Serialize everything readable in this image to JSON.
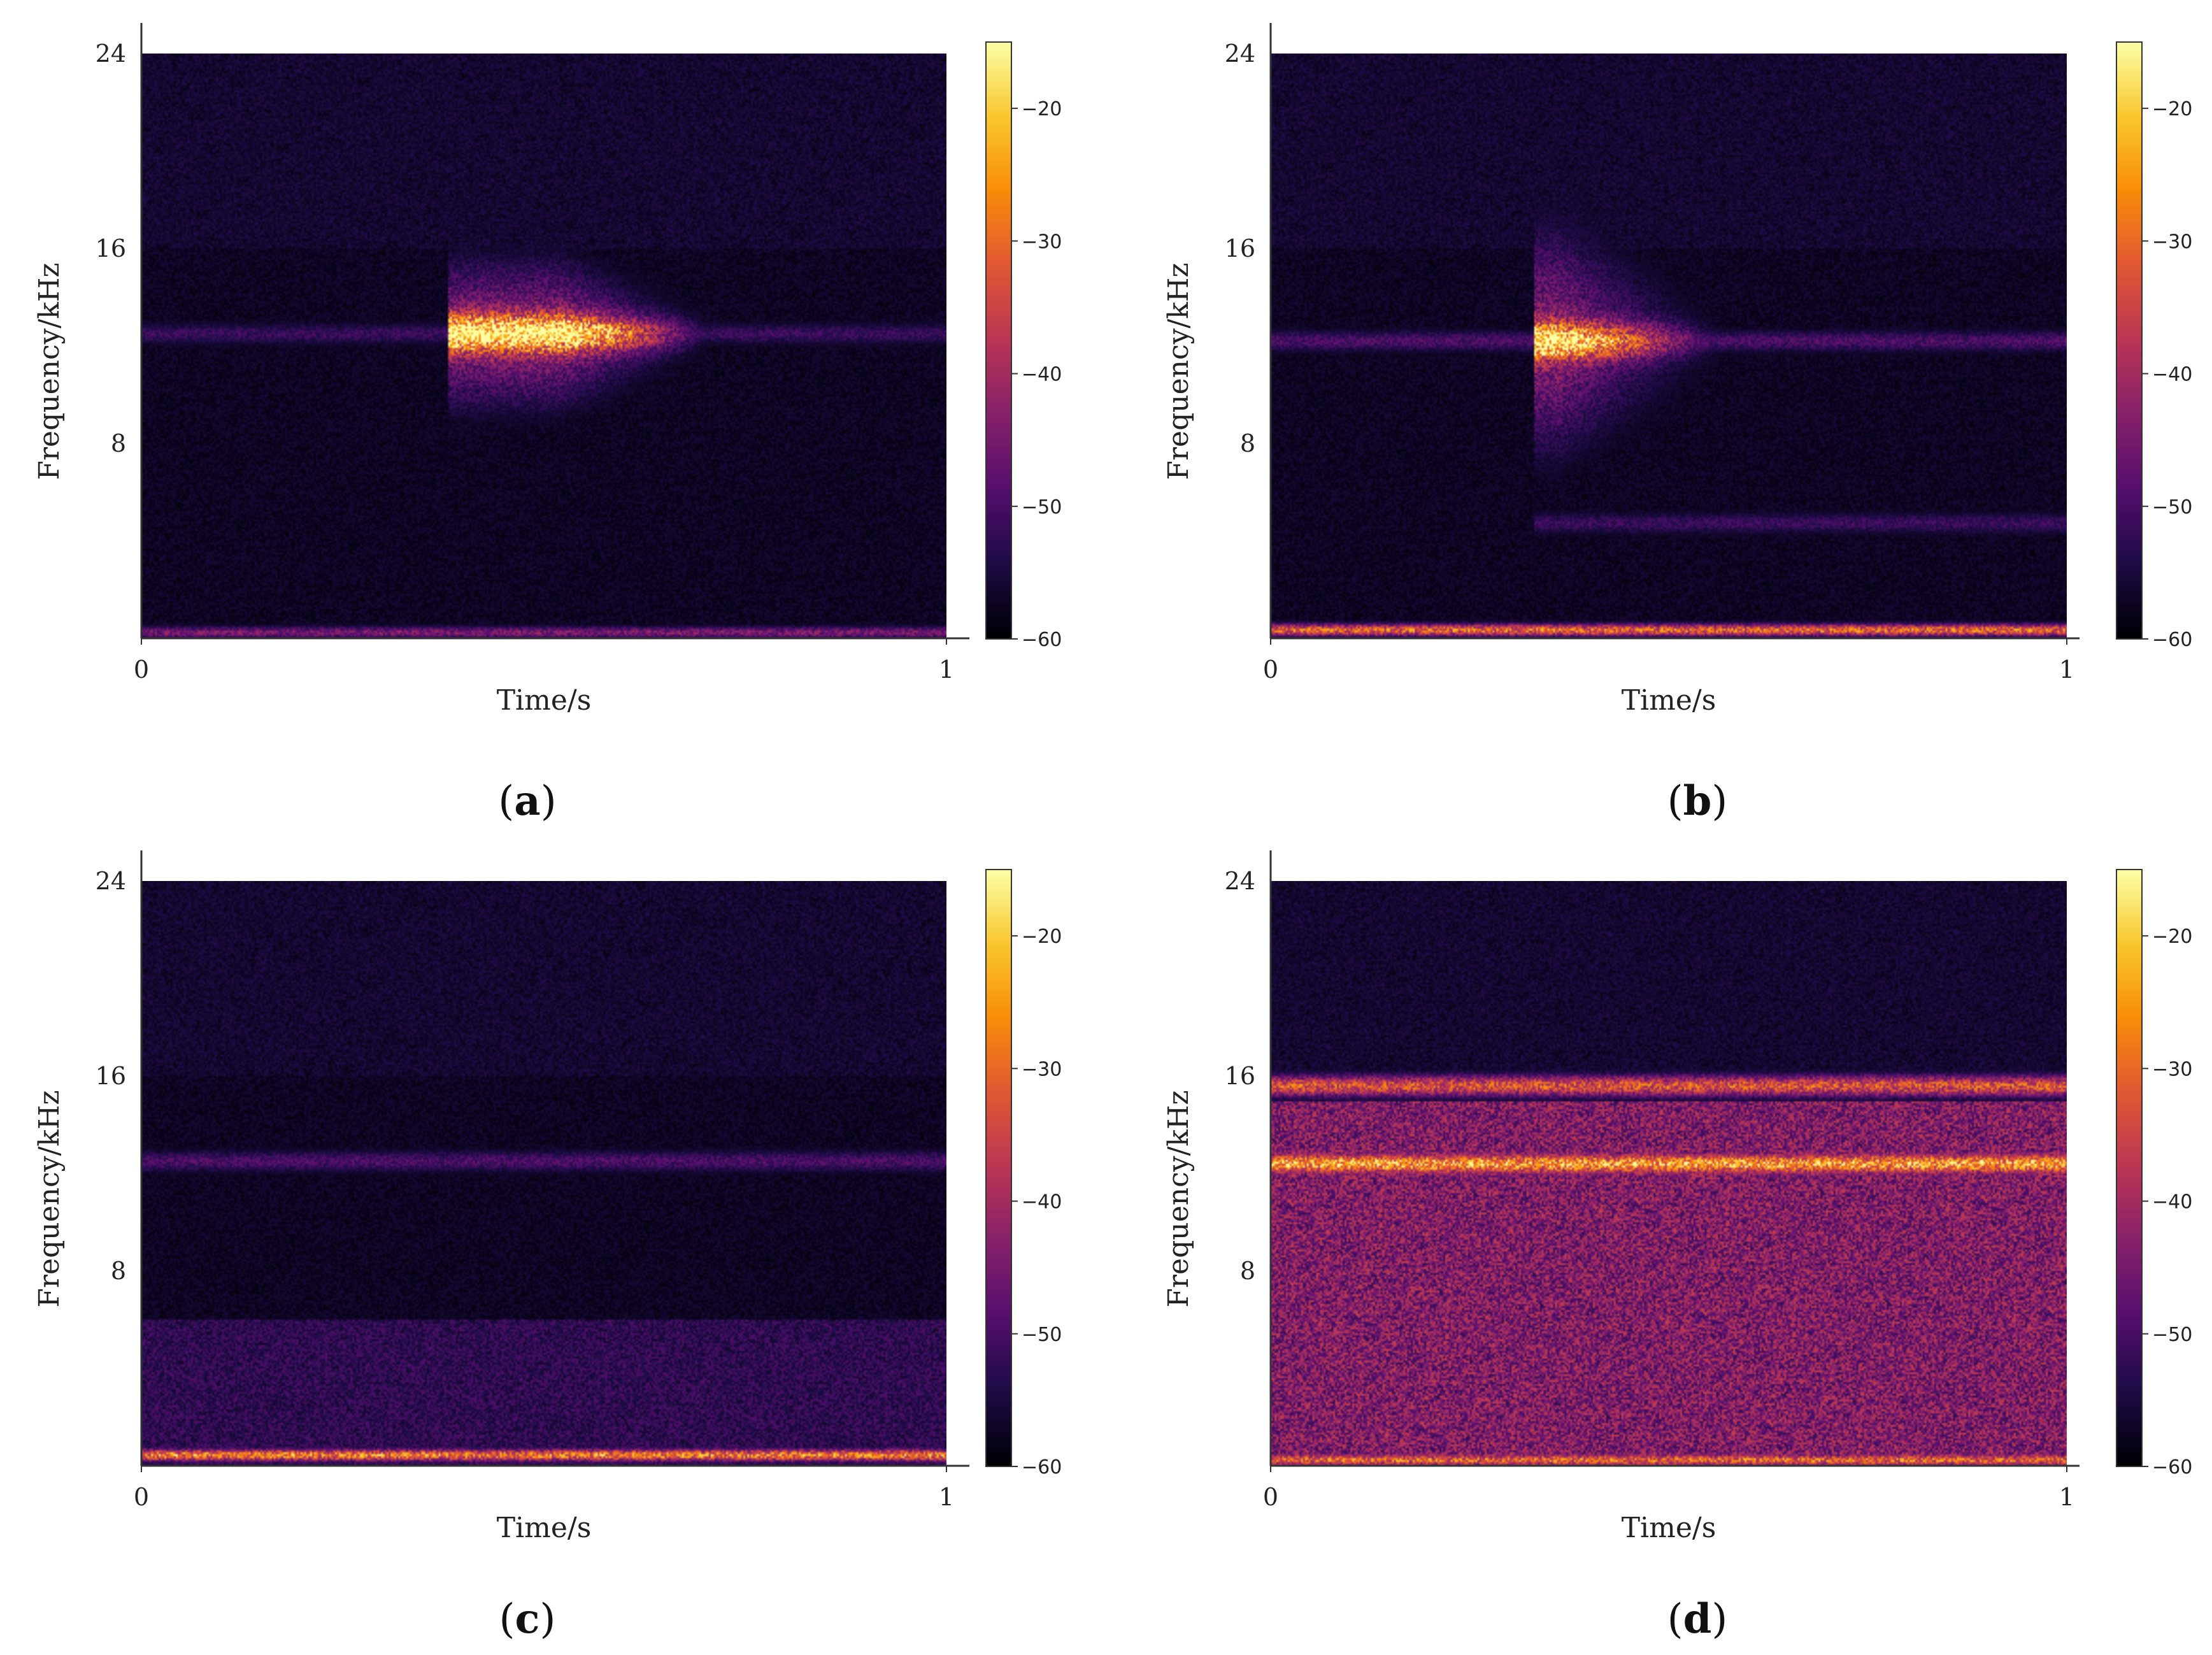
{
  "chart_data": [
    {
      "id": "a",
      "type": "heatmap",
      "caption_label": "a",
      "xlabel": "Time/s",
      "ylabel": "Frequency/kHz",
      "xlim": [
        0,
        1
      ],
      "ylim": [
        0,
        24
      ],
      "x_ticks": [
        "0",
        "1"
      ],
      "y_ticks": [
        "8",
        "16",
        "24"
      ],
      "colorbar": {
        "range": [
          -60,
          -15
        ],
        "ticks": [
          "-20",
          "-30",
          "-40",
          "-50",
          "-60"
        ],
        "colormap": "inferno"
      },
      "events": [
        {
          "kind": "band",
          "freq_khz": 12.5,
          "t_start": 0.0,
          "t_end": 1.0,
          "level_db": -50
        },
        {
          "kind": "burst",
          "freq_khz": 12.5,
          "t_start": 0.38,
          "t_peak": 0.52,
          "t_end": 0.72,
          "bandwidth_khz": [
            8,
            16.5
          ],
          "level_db": -18
        },
        {
          "kind": "band",
          "freq_khz": 0.2,
          "t_start": 0.0,
          "t_end": 1.0,
          "level_db": -42
        }
      ]
    },
    {
      "id": "b",
      "type": "heatmap",
      "caption_label": "b",
      "xlabel": "Time/s",
      "ylabel": "Frequency/kHz",
      "xlim": [
        0,
        1
      ],
      "ylim": [
        0,
        24
      ],
      "x_ticks": [
        "0",
        "1"
      ],
      "y_ticks": [
        "8",
        "16",
        "24"
      ],
      "colorbar": {
        "range": [
          -60,
          -15
        ],
        "ticks": [
          "-20",
          "-30",
          "-40",
          "-50",
          "-60"
        ],
        "colormap": "inferno"
      },
      "events": [
        {
          "kind": "band",
          "freq_khz": 12.2,
          "t_start": 0.0,
          "t_end": 1.0,
          "level_db": -48
        },
        {
          "kind": "burst",
          "freq_khz": 12.2,
          "t_start": 0.33,
          "t_peak": 0.36,
          "t_end": 0.58,
          "bandwidth_khz": [
            7,
            20
          ],
          "level_db": -20
        },
        {
          "kind": "band",
          "freq_khz": 4.7,
          "t_start": 0.33,
          "t_end": 1.0,
          "level_db": -50
        },
        {
          "kind": "band",
          "freq_khz": 0.3,
          "t_start": 0.0,
          "t_end": 1.0,
          "level_db": -25
        }
      ]
    },
    {
      "id": "c",
      "type": "heatmap",
      "caption_label": "c",
      "xlabel": "Time/s",
      "ylabel": "Frequency/kHz",
      "xlim": [
        0,
        1
      ],
      "ylim": [
        0,
        24
      ],
      "x_ticks": [
        "0",
        "1"
      ],
      "y_ticks": [
        "8",
        "16",
        "24"
      ],
      "colorbar": {
        "range": [
          -60,
          -15
        ],
        "ticks": [
          "-20",
          "-30",
          "-40",
          "-50",
          "-60"
        ],
        "colormap": "inferno"
      },
      "events": [
        {
          "kind": "band",
          "freq_khz": 12.5,
          "t_start": 0.0,
          "t_end": 1.0,
          "level_db": -48
        },
        {
          "kind": "broadband",
          "freq_khz": [
            0,
            6
          ],
          "t_start": 0.0,
          "t_end": 1.0,
          "level_db": -50
        },
        {
          "kind": "band",
          "freq_khz": 0.4,
          "t_start": 0.0,
          "t_end": 1.0,
          "level_db": -22
        }
      ]
    },
    {
      "id": "d",
      "type": "heatmap",
      "caption_label": "d",
      "xlabel": "Time/s",
      "ylabel": "Frequency/kHz",
      "xlim": [
        0,
        1
      ],
      "ylim": [
        0,
        24
      ],
      "x_ticks": [
        "0",
        "1"
      ],
      "y_ticks": [
        "8",
        "16",
        "24"
      ],
      "colorbar": {
        "range": [
          -60,
          -15
        ],
        "ticks": [
          "-20",
          "-30",
          "-40",
          "-50",
          "-60"
        ],
        "colormap": "inferno"
      },
      "events": [
        {
          "kind": "band",
          "freq_khz": 15.6,
          "t_start": 0.0,
          "t_end": 1.0,
          "level_db": -28
        },
        {
          "kind": "band",
          "freq_khz": 12.4,
          "t_start": 0.0,
          "t_end": 1.0,
          "level_db": -18
        },
        {
          "kind": "broadband",
          "freq_khz": [
            0,
            15
          ],
          "t_start": 0.0,
          "t_end": 1.0,
          "level_db": -38
        },
        {
          "kind": "band",
          "freq_khz": 0.2,
          "t_start": 0.0,
          "t_end": 1.0,
          "level_db": -25
        }
      ]
    }
  ]
}
